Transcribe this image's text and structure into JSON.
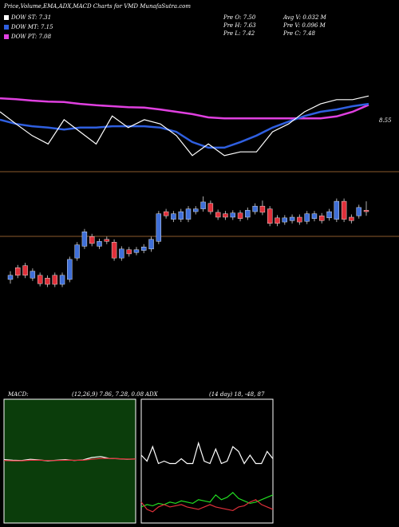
{
  "header": {
    "title": "Price,Volume,EMA,ADX,MACD Charts for VMD MunafaSutra.com",
    "legend": [
      {
        "label": "DOW ST: 7.31",
        "color": "#ffffff"
      },
      {
        "label": "DOW MT: 7.15",
        "color": "#2f5fe0"
      },
      {
        "label": "DOW PT: 7.08",
        "color": "#e040e0"
      }
    ],
    "stats": [
      "Pre O: 7.50",
      "Avg V: 0.032 M",
      "Pre H: 7.63",
      "Pre V: 0.096 M",
      "Pre L: 7.42",
      "Pre C: 7.48"
    ]
  },
  "chart_data": [
    {
      "type": "line",
      "annotation": "8.55",
      "ylim": [
        7.5,
        9.3
      ],
      "series": [
        {
          "color": "#e040e0",
          "values": [
            8.99,
            8.97,
            8.94,
            8.92,
            8.91,
            8.87,
            8.84,
            8.82,
            8.8,
            8.79,
            8.75,
            8.7,
            8.65,
            8.58,
            8.56,
            8.56,
            8.56,
            8.56,
            8.56,
            8.56,
            8.56,
            8.6,
            8.7,
            8.85
          ]
        },
        {
          "color": "#2f5fe0",
          "values": [
            8.53,
            8.44,
            8.39,
            8.36,
            8.32,
            8.36,
            8.36,
            8.39,
            8.39,
            8.39,
            8.36,
            8.27,
            8.05,
            7.93,
            7.93,
            8.05,
            8.19,
            8.36,
            8.49,
            8.61,
            8.7,
            8.75,
            8.82,
            8.87
          ]
        },
        {
          "color": "#ffffff",
          "values": [
            8.7,
            8.44,
            8.19,
            8.01,
            8.53,
            8.27,
            8.01,
            8.61,
            8.36,
            8.53,
            8.44,
            8.19,
            7.76,
            8.01,
            7.76,
            7.84,
            7.84,
            8.27,
            8.44,
            8.7,
            8.87,
            8.96,
            8.96,
            9.04
          ]
        }
      ]
    },
    {
      "type": "candlestick",
      "ylim": [
        5.0,
        8.0
      ],
      "up_color": "#3f6fd8",
      "down_color": "#e0303a",
      "open": [
        6.5,
        6.67,
        6.7,
        6.52,
        6.56,
        6.52,
        6.56,
        6.43,
        6.5,
        6.81,
        6.98,
        7.12,
        6.98,
        7.08,
        7.04,
        6.81,
        6.93,
        6.89,
        6.92,
        6.94,
        7.05,
        7.48,
        7.37,
        7.37,
        7.37,
        7.48,
        7.52,
        7.6,
        7.47,
        7.45,
        7.4,
        7.46,
        7.4,
        7.48,
        7.56,
        7.52,
        7.39,
        7.33,
        7.35,
        7.4,
        7.34,
        7.38,
        7.42,
        7.39,
        7.37,
        7.63,
        7.4,
        7.42,
        7.5
      ],
      "high": [
        6.62,
        6.71,
        6.74,
        6.66,
        6.6,
        6.56,
        6.6,
        6.6,
        6.83,
        7.04,
        7.23,
        7.16,
        7.09,
        7.12,
        7.08,
        6.98,
        6.97,
        6.97,
        7.01,
        7.12,
        7.49,
        7.52,
        7.49,
        7.52,
        7.56,
        7.56,
        7.7,
        7.64,
        7.51,
        7.49,
        7.5,
        7.5,
        7.54,
        7.6,
        7.64,
        7.56,
        7.43,
        7.43,
        7.44,
        7.44,
        7.49,
        7.49,
        7.46,
        7.52,
        7.67,
        7.67,
        7.44,
        7.58,
        7.63
      ],
      "low": [
        6.44,
        6.52,
        6.52,
        6.48,
        6.4,
        6.39,
        6.39,
        6.39,
        6.46,
        6.77,
        6.94,
        6.98,
        6.94,
        7.01,
        6.77,
        6.77,
        6.83,
        6.85,
        6.88,
        6.9,
        7.01,
        7.38,
        7.33,
        7.33,
        7.33,
        7.44,
        7.48,
        7.44,
        7.36,
        7.36,
        7.36,
        7.34,
        7.36,
        7.44,
        7.43,
        7.27,
        7.27,
        7.29,
        7.31,
        7.29,
        7.3,
        7.34,
        7.31,
        7.35,
        7.33,
        7.33,
        7.31,
        7.38,
        7.42
      ],
      "close": [
        6.56,
        6.56,
        6.56,
        6.62,
        6.44,
        6.43,
        6.43,
        6.56,
        6.79,
        7.0,
        7.19,
        7.02,
        7.05,
        7.05,
        6.81,
        6.94,
        6.87,
        6.93,
        6.97,
        7.08,
        7.45,
        7.42,
        7.45,
        7.48,
        7.52,
        7.52,
        7.62,
        7.48,
        7.4,
        7.4,
        7.46,
        7.38,
        7.5,
        7.56,
        7.47,
        7.31,
        7.31,
        7.39,
        7.4,
        7.33,
        7.45,
        7.45,
        7.35,
        7.48,
        7.63,
        7.37,
        7.35,
        7.54,
        7.48
      ]
    },
    {
      "type": "line",
      "title": "MACD:",
      "subtitle": "(12,26,9) 7.86, 7.28, 0.08",
      "ylim": [
        -20,
        20
      ],
      "background": "#0b3d0b",
      "series": [
        {
          "color": "#ffffff",
          "values": [
            0.5,
            0.3,
            0.2,
            0.6,
            0.4,
            0.1,
            0.3,
            0.5,
            0.2,
            0.4,
            1.2,
            1.5,
            0.9,
            0.8,
            0.6,
            0.7
          ]
        },
        {
          "color": "#e0303a",
          "values": [
            0.2,
            0.1,
            0.1,
            0.3,
            0.3,
            0.2,
            0.2,
            0.3,
            0.3,
            0.3,
            0.6,
            0.9,
            0.9,
            0.8,
            0.7,
            0.7
          ]
        }
      ]
    },
    {
      "type": "line",
      "title": "ADX",
      "subtitle": "(14 day) 18, -48, 87",
      "ylim": [
        0,
        100
      ],
      "background": "#000000",
      "series": [
        {
          "color": "#ffffff",
          "values": [
            55,
            50,
            62,
            48,
            50,
            48,
            48,
            52,
            48,
            48,
            65,
            50,
            48,
            60,
            48,
            50,
            62,
            58,
            48,
            55,
            48,
            48,
            58,
            52
          ]
        },
        {
          "color": "#22dd22",
          "values": [
            12,
            14,
            13,
            15,
            14,
            16,
            15,
            17,
            16,
            15,
            18,
            17,
            16,
            22,
            18,
            20,
            24,
            19,
            17,
            15,
            16,
            18,
            20,
            22
          ]
        },
        {
          "color": "#e0303a",
          "values": [
            16,
            10,
            8,
            12,
            14,
            12,
            13,
            14,
            12,
            11,
            10,
            12,
            14,
            12,
            11,
            10,
            9,
            12,
            13,
            16,
            18,
            14,
            12,
            10
          ]
        }
      ]
    }
  ]
}
